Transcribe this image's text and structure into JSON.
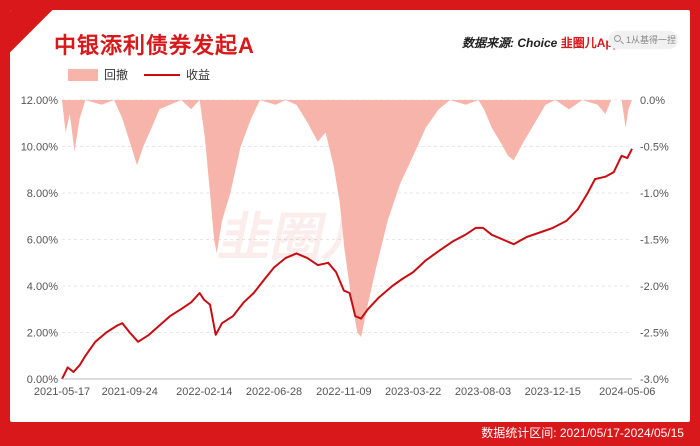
{
  "header": {
    "title": "中银添利债券发起A",
    "source_label": "数据来源: Choice",
    "source_brand": "韭圈儿App",
    "search_placeholder": "1从基得一捏"
  },
  "legend": {
    "drawdown_label": "回撤",
    "return_label": "收益"
  },
  "footer": {
    "range_text": "数据统计区间: 2021/05/17-2024/05/15"
  },
  "watermark": "韭圈儿",
  "colors": {
    "frame": "#d9181b",
    "line": "#c80d12",
    "area": "#f7b4aa"
  },
  "chart_data": {
    "type": "line",
    "x_tick_labels": [
      "2021-05-17",
      "2021-09-24",
      "2022-02-14",
      "2022-06-28",
      "2022-11-09",
      "2023-03-22",
      "2023-08-03",
      "2023-12-15",
      "2024-05-06"
    ],
    "y_left": {
      "label": "",
      "range": [
        0,
        12
      ],
      "tick_labels": [
        "0.00%",
        "2.00%",
        "4.00%",
        "6.00%",
        "8.00%",
        "10.00%",
        "12.00%"
      ]
    },
    "y_right": {
      "label": "",
      "range": [
        -3.0,
        0.0
      ],
      "tick_labels": [
        "0.0%",
        "-0.5%",
        "-1.0%",
        "-1.5%",
        "-2.0%",
        "-2.5%",
        "-3.0%"
      ]
    },
    "series": [
      {
        "name": "收益",
        "axis": "left",
        "unit": "%",
        "points": [
          [
            "2021-05-17",
            0.0
          ],
          [
            "2021-05-28",
            0.5
          ],
          [
            "2021-06-08",
            0.3
          ],
          [
            "2021-06-20",
            0.6
          ],
          [
            "2021-07-01",
            1.0
          ],
          [
            "2021-07-20",
            1.6
          ],
          [
            "2021-08-10",
            2.0
          ],
          [
            "2021-08-31",
            2.3
          ],
          [
            "2021-09-10",
            2.4
          ],
          [
            "2021-09-24",
            2.0
          ],
          [
            "2021-10-10",
            1.6
          ],
          [
            "2021-10-31",
            1.9
          ],
          [
            "2021-11-20",
            2.3
          ],
          [
            "2021-12-10",
            2.7
          ],
          [
            "2021-12-31",
            3.0
          ],
          [
            "2022-01-20",
            3.3
          ],
          [
            "2022-02-05",
            3.7
          ],
          [
            "2022-02-14",
            3.4
          ],
          [
            "2022-02-25",
            3.2
          ],
          [
            "2022-03-08",
            1.9
          ],
          [
            "2022-03-20",
            2.4
          ],
          [
            "2022-04-10",
            2.7
          ],
          [
            "2022-05-01",
            3.3
          ],
          [
            "2022-05-20",
            3.7
          ],
          [
            "2022-06-10",
            4.3
          ],
          [
            "2022-06-28",
            4.8
          ],
          [
            "2022-07-20",
            5.2
          ],
          [
            "2022-08-10",
            5.4
          ],
          [
            "2022-08-31",
            5.2
          ],
          [
            "2022-09-20",
            4.9
          ],
          [
            "2022-10-10",
            5.0
          ],
          [
            "2022-10-25",
            4.6
          ],
          [
            "2022-11-09",
            3.8
          ],
          [
            "2022-11-20",
            3.7
          ],
          [
            "2022-12-01",
            2.7
          ],
          [
            "2022-12-12",
            2.6
          ],
          [
            "2022-12-25",
            3.0
          ],
          [
            "2023-01-15",
            3.5
          ],
          [
            "2023-02-10",
            4.0
          ],
          [
            "2023-03-01",
            4.3
          ],
          [
            "2023-03-22",
            4.6
          ],
          [
            "2023-04-15",
            5.1
          ],
          [
            "2023-05-10",
            5.5
          ],
          [
            "2023-06-05",
            5.9
          ],
          [
            "2023-06-30",
            6.2
          ],
          [
            "2023-07-20",
            6.5
          ],
          [
            "2023-08-03",
            6.5
          ],
          [
            "2023-08-20",
            6.2
          ],
          [
            "2023-09-10",
            6.0
          ],
          [
            "2023-10-01",
            5.8
          ],
          [
            "2023-10-25",
            6.1
          ],
          [
            "2023-11-20",
            6.3
          ],
          [
            "2023-12-15",
            6.5
          ],
          [
            "2024-01-10",
            6.8
          ],
          [
            "2024-02-01",
            7.3
          ],
          [
            "2024-02-20",
            8.0
          ],
          [
            "2024-03-05",
            8.6
          ],
          [
            "2024-03-25",
            8.7
          ],
          [
            "2024-04-10",
            8.9
          ],
          [
            "2024-04-25",
            9.6
          ],
          [
            "2024-05-06",
            9.5
          ],
          [
            "2024-05-15",
            9.9
          ]
        ]
      },
      {
        "name": "回撤",
        "axis": "right",
        "unit": "%",
        "points": [
          [
            "2021-05-17",
            0.0
          ],
          [
            "2021-05-24",
            -0.35
          ],
          [
            "2021-06-01",
            -0.15
          ],
          [
            "2021-06-10",
            -0.55
          ],
          [
            "2021-06-20",
            -0.2
          ],
          [
            "2021-07-01",
            0.0
          ],
          [
            "2021-08-01",
            -0.05
          ],
          [
            "2021-08-25",
            0.0
          ],
          [
            "2021-09-10",
            -0.2
          ],
          [
            "2021-09-24",
            -0.45
          ],
          [
            "2021-10-08",
            -0.7
          ],
          [
            "2021-10-20",
            -0.5
          ],
          [
            "2021-11-05",
            -0.3
          ],
          [
            "2021-11-20",
            -0.1
          ],
          [
            "2021-12-10",
            -0.05
          ],
          [
            "2022-01-01",
            0.0
          ],
          [
            "2022-01-20",
            -0.1
          ],
          [
            "2022-02-05",
            0.0
          ],
          [
            "2022-02-15",
            -0.4
          ],
          [
            "2022-02-25",
            -1.0
          ],
          [
            "2022-03-05",
            -1.5
          ],
          [
            "2022-03-10",
            -1.65
          ],
          [
            "2022-03-20",
            -1.3
          ],
          [
            "2022-04-05",
            -1.0
          ],
          [
            "2022-04-25",
            -0.5
          ],
          [
            "2022-05-15",
            -0.2
          ],
          [
            "2022-06-01",
            0.0
          ],
          [
            "2022-07-01",
            -0.05
          ],
          [
            "2022-07-20",
            0.0
          ],
          [
            "2022-08-10",
            -0.05
          ],
          [
            "2022-09-01",
            -0.25
          ],
          [
            "2022-09-20",
            -0.45
          ],
          [
            "2022-10-05",
            -0.35
          ],
          [
            "2022-10-20",
            -0.7
          ],
          [
            "2022-11-01",
            -1.1
          ],
          [
            "2022-11-10",
            -1.6
          ],
          [
            "2022-11-25",
            -2.2
          ],
          [
            "2022-12-05",
            -2.5
          ],
          [
            "2022-12-12",
            -2.55
          ],
          [
            "2022-12-25",
            -2.2
          ],
          [
            "2023-01-10",
            -1.8
          ],
          [
            "2023-02-01",
            -1.3
          ],
          [
            "2023-02-25",
            -0.9
          ],
          [
            "2023-03-22",
            -0.6
          ],
          [
            "2023-04-15",
            -0.3
          ],
          [
            "2023-05-10",
            -0.1
          ],
          [
            "2023-06-01",
            0.0
          ],
          [
            "2023-07-01",
            -0.05
          ],
          [
            "2023-07-25",
            0.0
          ],
          [
            "2023-08-05",
            -0.1
          ],
          [
            "2023-08-20",
            -0.3
          ],
          [
            "2023-09-05",
            -0.45
          ],
          [
            "2023-09-20",
            -0.6
          ],
          [
            "2023-10-01",
            -0.65
          ],
          [
            "2023-10-20",
            -0.45
          ],
          [
            "2023-11-10",
            -0.25
          ],
          [
            "2023-12-01",
            -0.05
          ],
          [
            "2023-12-20",
            0.0
          ],
          [
            "2024-01-15",
            -0.1
          ],
          [
            "2024-02-10",
            0.0
          ],
          [
            "2024-03-10",
            -0.05
          ],
          [
            "2024-03-25",
            -0.15
          ],
          [
            "2024-04-05",
            0.0
          ],
          [
            "2024-04-25",
            0.0
          ],
          [
            "2024-05-03",
            -0.3
          ],
          [
            "2024-05-08",
            -0.1
          ],
          [
            "2024-05-15",
            0.0
          ]
        ]
      }
    ],
    "grid": true,
    "legend_position": "top-left"
  }
}
